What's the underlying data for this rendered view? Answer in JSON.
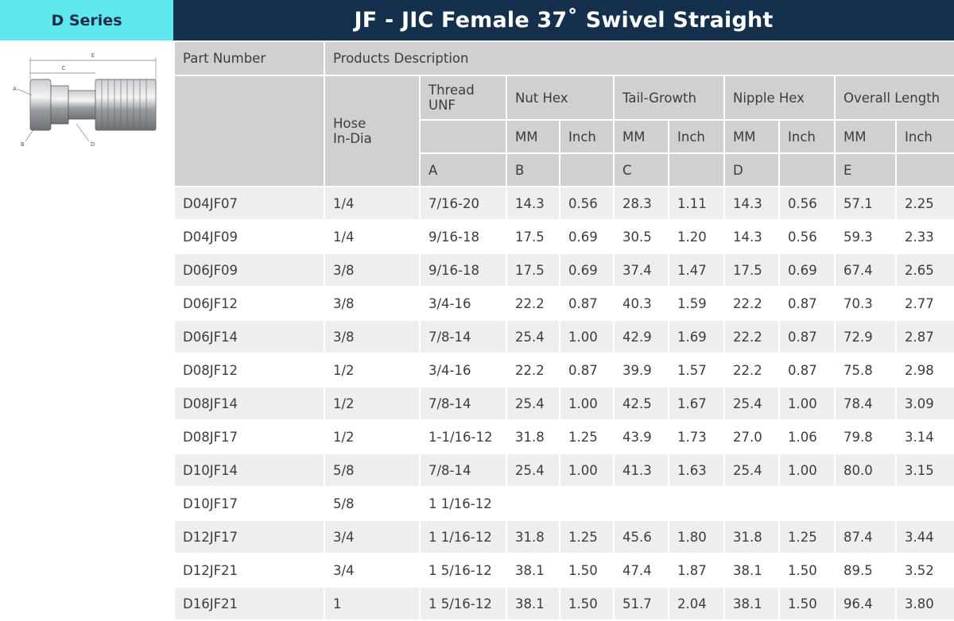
{
  "series_label": "D Series",
  "title": "JF - JIC Female 37˚ Swivel Straight",
  "diagram": {
    "labels": [
      "E",
      "C",
      "A",
      "B",
      "D"
    ]
  },
  "header": {
    "part_number": "Part Number",
    "products_description": "Products Description",
    "hose_line1": "Hose",
    "hose_line2": "In-Dia",
    "thread_line1": "Thread",
    "thread_line2": "UNF",
    "nut_hex": "Nut Hex",
    "tail_growth": "Tail-Growth",
    "nipple_hex": "Nipple Hex",
    "overall_length": "Overall Length",
    "mm": "MM",
    "inch": "Inch",
    "letter_a": "A",
    "letter_b": "B",
    "letter_c": "C",
    "letter_d": "D",
    "letter_e": "E"
  },
  "rows": [
    {
      "part": "D04JF07",
      "hose": "1/4",
      "thread": "7/16-20",
      "nut_mm": "14.3",
      "nut_in": "0.56",
      "tail_mm": "28.3",
      "tail_in": "1.11",
      "nip_mm": "14.3",
      "nip_in": "0.56",
      "len_mm": "57.1",
      "len_in": "2.25"
    },
    {
      "part": "D04JF09",
      "hose": "1/4",
      "thread": "9/16-18",
      "nut_mm": "17.5",
      "nut_in": "0.69",
      "tail_mm": "30.5",
      "tail_in": "1.20",
      "nip_mm": "14.3",
      "nip_in": "0.56",
      "len_mm": "59.3",
      "len_in": "2.33"
    },
    {
      "part": "D06JF09",
      "hose": "3/8",
      "thread": "9/16-18",
      "nut_mm": "17.5",
      "nut_in": "0.69",
      "tail_mm": "37.4",
      "tail_in": "1.47",
      "nip_mm": "17.5",
      "nip_in": "0.69",
      "len_mm": "67.4",
      "len_in": "2.65"
    },
    {
      "part": "D06JF12",
      "hose": "3/8",
      "thread": "3/4-16",
      "nut_mm": "22.2",
      "nut_in": "0.87",
      "tail_mm": "40.3",
      "tail_in": "1.59",
      "nip_mm": "22.2",
      "nip_in": "0.87",
      "len_mm": "70.3",
      "len_in": "2.77"
    },
    {
      "part": "D06JF14",
      "hose": "3/8",
      "thread": "7/8-14",
      "nut_mm": "25.4",
      "nut_in": "1.00",
      "tail_mm": "42.9",
      "tail_in": "1.69",
      "nip_mm": "22.2",
      "nip_in": "0.87",
      "len_mm": "72.9",
      "len_in": "2.87"
    },
    {
      "part": "D08JF12",
      "hose": "1/2",
      "thread": "3/4-16",
      "nut_mm": "22.2",
      "nut_in": "0.87",
      "tail_mm": "39.9",
      "tail_in": "1.57",
      "nip_mm": "22.2",
      "nip_in": "0.87",
      "len_mm": "75.8",
      "len_in": "2.98"
    },
    {
      "part": "D08JF14",
      "hose": "1/2",
      "thread": "7/8-14",
      "nut_mm": "25.4",
      "nut_in": "1.00",
      "tail_mm": "42.5",
      "tail_in": "1.67",
      "nip_mm": "25.4",
      "nip_in": "1.00",
      "len_mm": "78.4",
      "len_in": "3.09"
    },
    {
      "part": "D08JF17",
      "hose": "1/2",
      "thread": "1-1/16-12",
      "nut_mm": "31.8",
      "nut_in": "1.25",
      "tail_mm": "43.9",
      "tail_in": "1.73",
      "nip_mm": "27.0",
      "nip_in": "1.06",
      "len_mm": "79.8",
      "len_in": "3.14"
    },
    {
      "part": "D10JF14",
      "hose": "5/8",
      "thread": "7/8-14",
      "nut_mm": "25.4",
      "nut_in": "1.00",
      "tail_mm": "41.3",
      "tail_in": "1.63",
      "nip_mm": "25.4",
      "nip_in": "1.00",
      "len_mm": "80.0",
      "len_in": "3.15"
    },
    {
      "part": "D10JF17",
      "hose": "5/8",
      "thread": "1 1/16-12",
      "nut_mm": "",
      "nut_in": "",
      "tail_mm": "",
      "tail_in": "",
      "nip_mm": "",
      "nip_in": "",
      "len_mm": "",
      "len_in": ""
    },
    {
      "part": "D12JF17",
      "hose": "3/4",
      "thread": "1 1/16-12",
      "nut_mm": "31.8",
      "nut_in": "1.25",
      "tail_mm": "45.6",
      "tail_in": "1.80",
      "nip_mm": "31.8",
      "nip_in": "1.25",
      "len_mm": "87.4",
      "len_in": "3.44"
    },
    {
      "part": "D12JF21",
      "hose": "3/4",
      "thread": "1 5/16-12",
      "nut_mm": "38.1",
      "nut_in": "1.50",
      "tail_mm": "47.4",
      "tail_in": "1.87",
      "nip_mm": "38.1",
      "nip_in": "1.50",
      "len_mm": "89.5",
      "len_in": "3.52"
    },
    {
      "part": "D16JF21",
      "hose": "1",
      "thread": "1 5/16-12",
      "nut_mm": "38.1",
      "nut_in": "1.50",
      "tail_mm": "51.7",
      "tail_in": "2.04",
      "nip_mm": "38.1",
      "nip_in": "1.50",
      "len_mm": "96.4",
      "len_in": "3.80"
    }
  ]
}
